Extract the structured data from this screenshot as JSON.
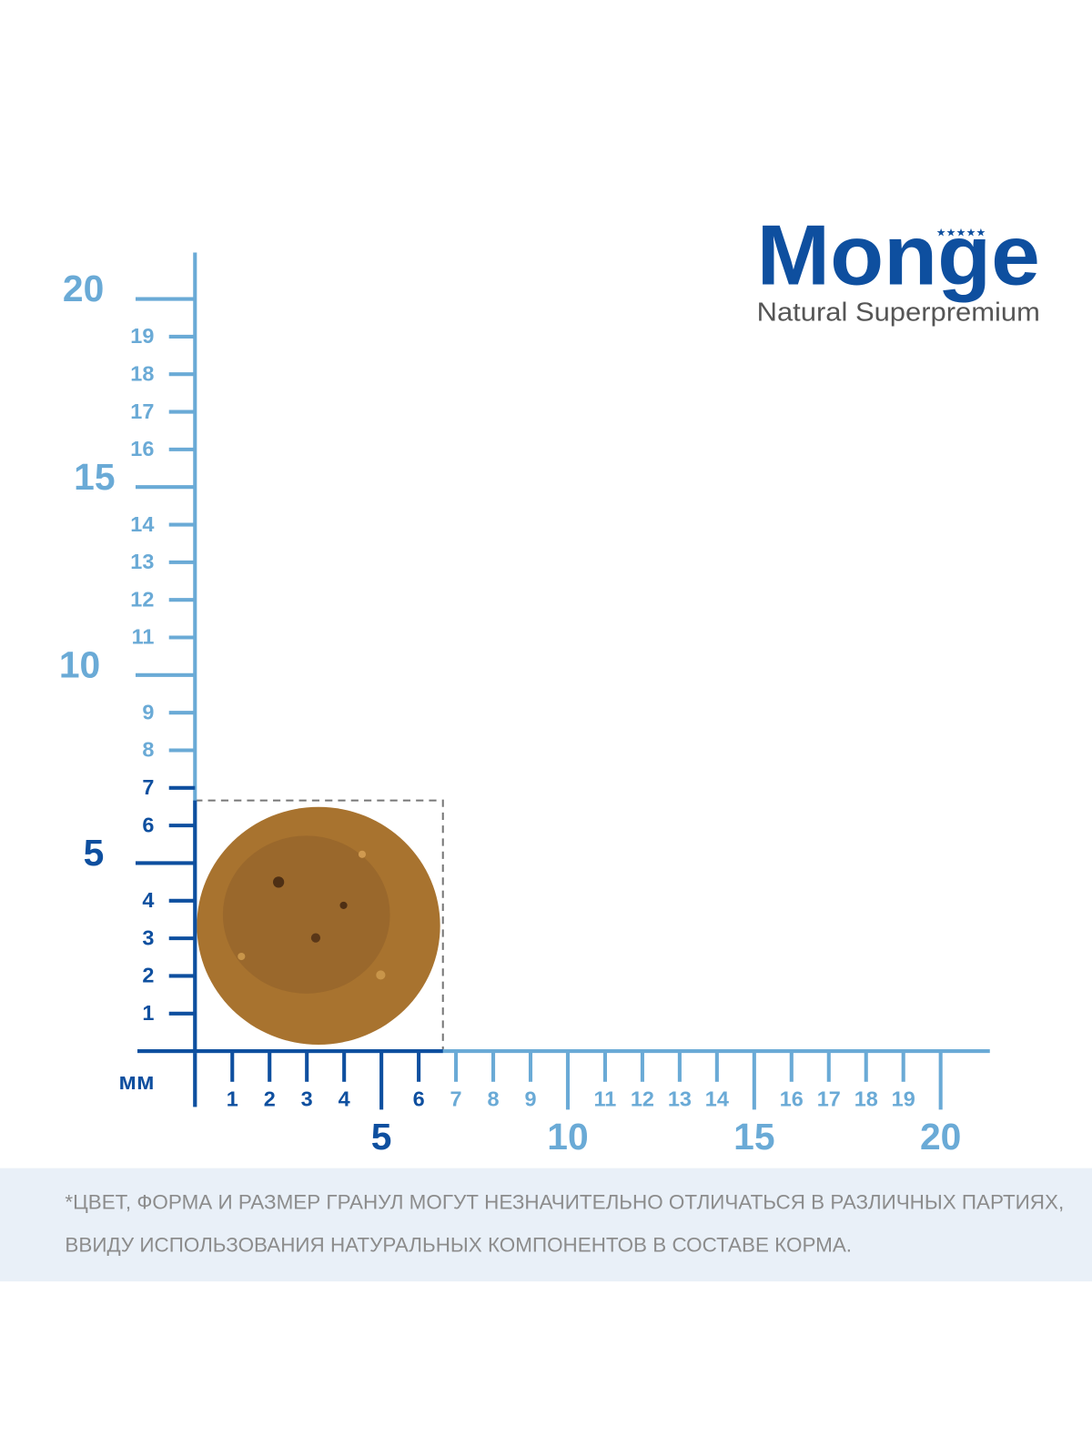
{
  "logo": {
    "brand": "Monge",
    "tagline": "Natural Superpremium"
  },
  "ruler": {
    "unit": "мм",
    "y_axis": {
      "dark_major": [
        5
      ],
      "dark_minor": [
        1,
        2,
        3,
        4,
        6,
        7
      ],
      "light_major": [
        10,
        15,
        20
      ],
      "light_minor": [
        8,
        9,
        11,
        12,
        13,
        14,
        16,
        17,
        18,
        19
      ]
    },
    "x_axis": {
      "dark_major": [
        5
      ],
      "dark_minor": [
        1,
        2,
        3,
        4,
        6
      ],
      "light_major": [
        10,
        15,
        20
      ],
      "light_minor": [
        7,
        8,
        9,
        11,
        12,
        13,
        14,
        16,
        17,
        18,
        19
      ]
    }
  },
  "footer": {
    "lines": [
      "*ЦВЕТ, ФОРМА И РАЗМЕР ГРАНУЛ МОГУТ НЕЗНАЧИТЕЛЬНО ОТЛИЧАТЬСЯ В РАЗЛИЧНЫХ ПАРТИЯХ,",
      "ВВИДУ ИСПОЛЬЗОВАНИЯ НАТУРАЛЬНЫХ КОМПОНЕНТОВ В СОСТАВЕ КОРМА."
    ]
  }
}
